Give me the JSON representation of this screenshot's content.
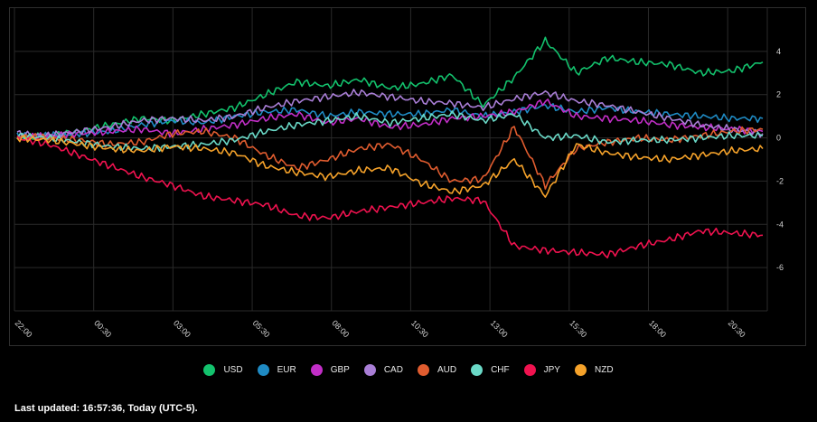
{
  "chart_data": {
    "type": "line",
    "x_ticks": [
      "22:00",
      "00:30",
      "03:00",
      "05:30",
      "08:00",
      "10:30",
      "13:00",
      "15:30",
      "18:00",
      "20:30"
    ],
    "y_ticks": [
      "4",
      "2",
      "0",
      "-2",
      "-4",
      "-6"
    ],
    "ylim": [
      -8,
      6
    ],
    "grid": true,
    "legend_position": "bottom",
    "series": [
      {
        "name": "USD",
        "color": "#13c26d",
        "values": [
          0,
          0.1,
          0.3,
          0.6,
          0.9,
          0.8,
          1.1,
          1.4,
          2.0,
          2.6,
          2.4,
          2.7,
          2.3,
          2.5,
          2.9,
          1.5,
          2.8,
          4.5,
          3.0,
          3.7,
          3.5,
          3.4,
          3.0,
          3.1,
          3.5
        ]
      },
      {
        "name": "EUR",
        "color": "#1f8bc4",
        "values": [
          0.1,
          0.1,
          0.2,
          0.3,
          0.6,
          0.8,
          0.7,
          1.0,
          1.2,
          1.3,
          1.0,
          1.2,
          1.1,
          1.1,
          1.3,
          1.0,
          1.2,
          1.5,
          1.2,
          1.4,
          1.2,
          1.1,
          1.0,
          0.9,
          0.9
        ]
      },
      {
        "name": "GBP",
        "color": "#c22ec7",
        "values": [
          0,
          0.1,
          0.2,
          0.3,
          0.4,
          0.2,
          0.4,
          0.6,
          0.9,
          1.1,
          0.7,
          0.9,
          0.5,
          0.6,
          0.9,
          1.0,
          1.2,
          1.7,
          1.0,
          0.9,
          0.8,
          0.6,
          0.5,
          0.4,
          0.3
        ]
      },
      {
        "name": "CAD",
        "color": "#a97ed6",
        "values": [
          0.2,
          0.1,
          0.3,
          0.5,
          0.8,
          0.9,
          0.8,
          1.0,
          1.4,
          1.7,
          1.9,
          2.1,
          1.9,
          1.7,
          1.6,
          1.4,
          1.8,
          2.1,
          1.7,
          1.5,
          1.2,
          0.9,
          0.6,
          0.4,
          0.2
        ]
      },
      {
        "name": "AUD",
        "color": "#e05c2f",
        "values": [
          0.1,
          0,
          -0.1,
          -0.3,
          -0.2,
          0.2,
          0.3,
          0,
          -0.8,
          -1.4,
          -1.0,
          -0.5,
          -0.3,
          -1.0,
          -2.0,
          -1.9,
          0.5,
          -2.2,
          -0.5,
          -0.2,
          0,
          -0.1,
          0.1,
          0.3,
          0.4
        ]
      },
      {
        "name": "CHF",
        "color": "#6ad9c7",
        "values": [
          0.1,
          0,
          -0.2,
          -0.4,
          -0.5,
          -0.4,
          -0.3,
          -0.1,
          0.3,
          0.6,
          0.8,
          1.0,
          0.7,
          0.9,
          1.1,
          0.8,
          1.1,
          0,
          0.1,
          -0.2,
          -0.1,
          -0.1,
          0,
          0.1,
          0.1
        ]
      },
      {
        "name": "JPY",
        "color": "#f0124f",
        "values": [
          0,
          -0.3,
          -0.8,
          -1.3,
          -1.8,
          -2.2,
          -2.7,
          -2.9,
          -3.1,
          -3.6,
          -3.7,
          -3.4,
          -3.2,
          -3.0,
          -2.8,
          -2.9,
          -5.0,
          -5.2,
          -5.3,
          -5.4,
          -5.0,
          -4.7,
          -4.3,
          -4.4,
          -4.5
        ]
      },
      {
        "name": "NZD",
        "color": "#f5a22a",
        "values": [
          0,
          -0.1,
          -0.3,
          -0.5,
          -0.6,
          -0.4,
          -0.5,
          -0.7,
          -1.3,
          -1.6,
          -1.8,
          -1.5,
          -1.4,
          -2.1,
          -2.5,
          -2.2,
          -1.0,
          -2.7,
          -0.3,
          -0.7,
          -0.9,
          -1.0,
          -0.8,
          -0.6,
          -0.5
        ]
      }
    ]
  },
  "footer": {
    "last_updated": "Last updated: 16:57:36, Today (UTC-5)."
  }
}
